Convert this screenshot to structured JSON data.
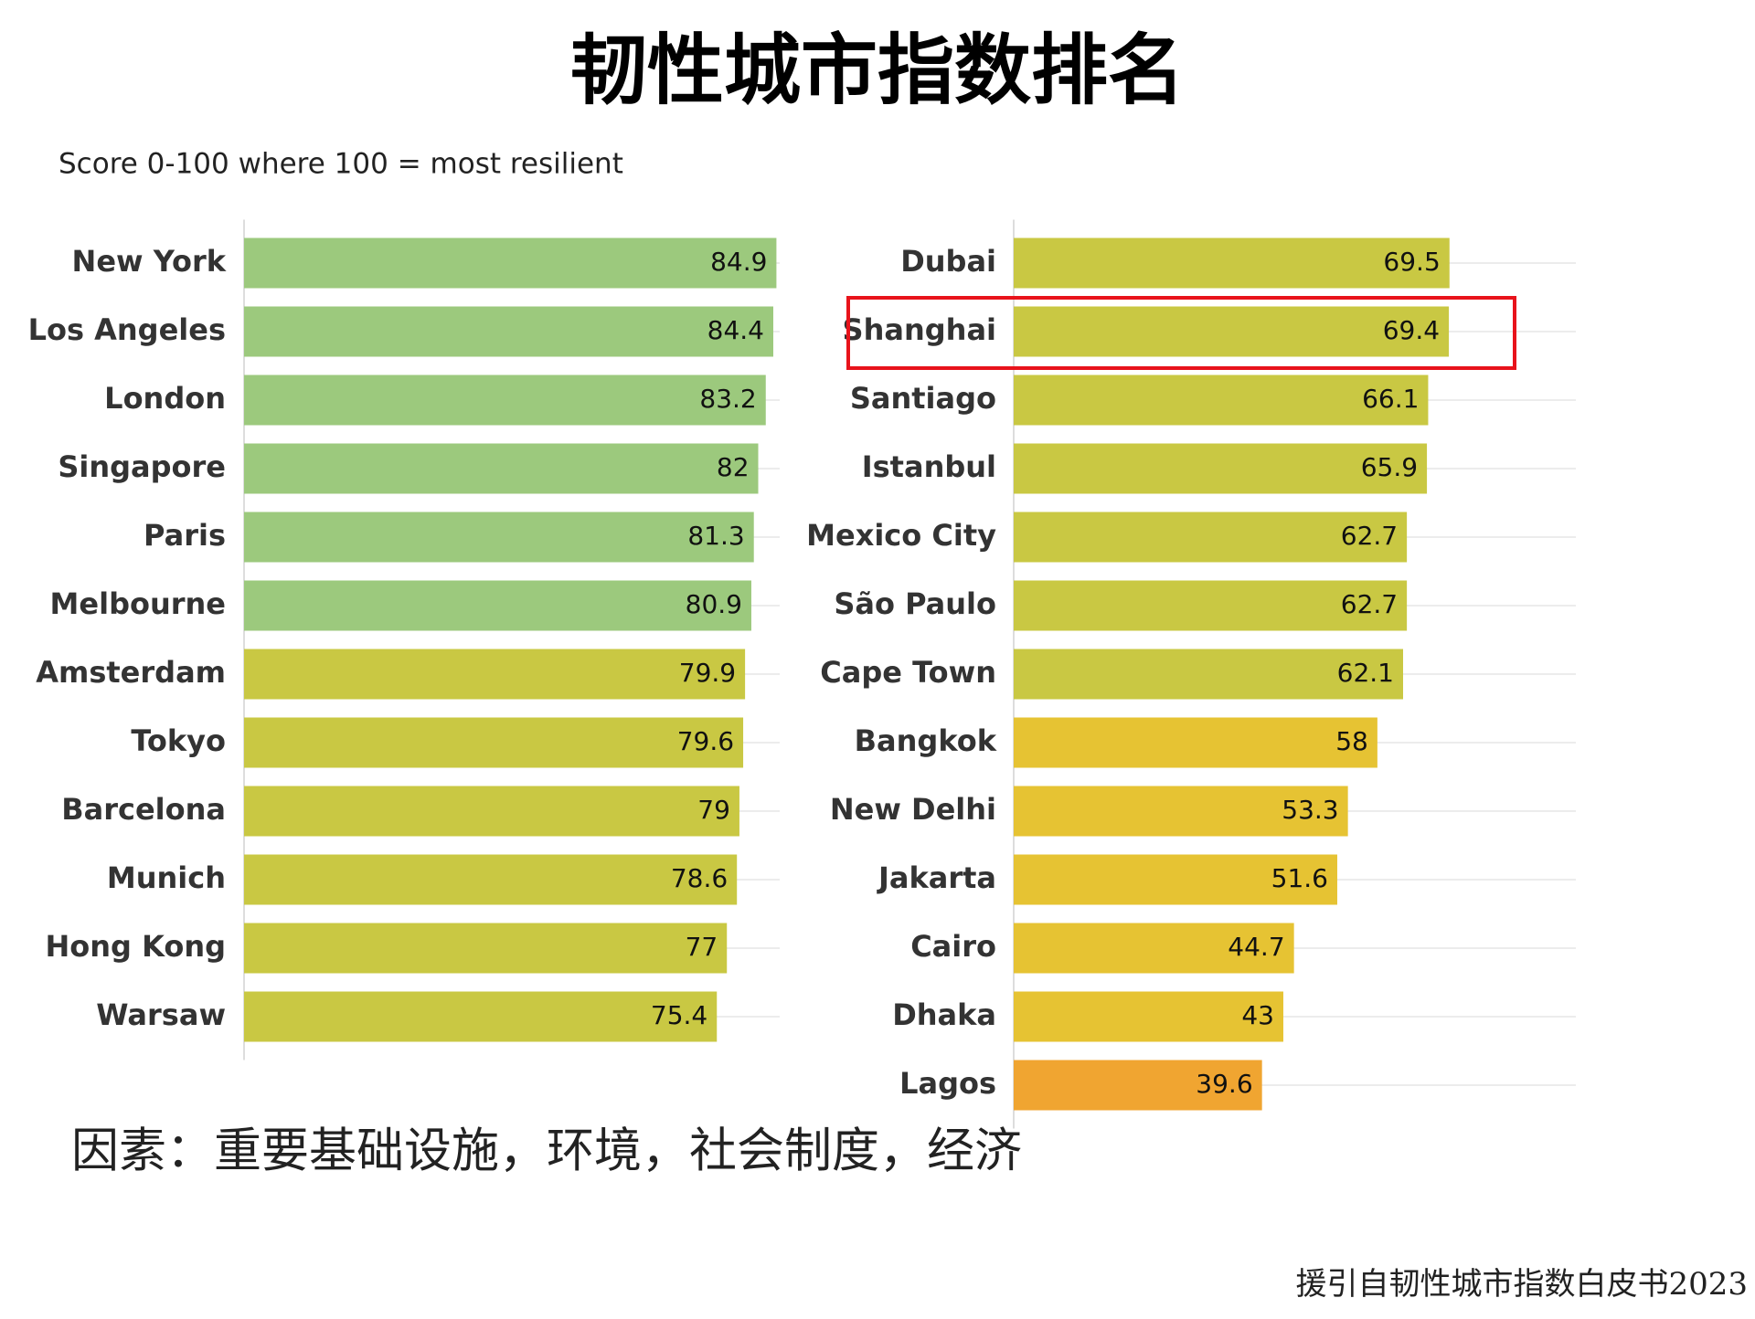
{
  "title": "韧性城市指数排名",
  "subtitle": "Score 0-100 where 100 = most resilient",
  "factors": "因素：重要基础设施，环境，社会制度，经济",
  "source": "援引自韧性城市指数白皮书2023",
  "chart_data": [
    {
      "type": "bar",
      "orientation": "horizontal",
      "xlim": [
        0,
        100
      ],
      "categories": [
        "New York",
        "Los Angeles",
        "London",
        "Singapore",
        "Paris",
        "Melbourne",
        "Amsterdam",
        "Tokyo",
        "Barcelona",
        "Munich",
        "Hong Kong",
        "Warsaw"
      ],
      "values": [
        84.9,
        84.4,
        83.2,
        82,
        81.3,
        80.9,
        79.9,
        79.6,
        79,
        78.6,
        77,
        75.4
      ],
      "colors": [
        "#9cc97d",
        "#9cc97d",
        "#9cc97d",
        "#9cc97d",
        "#9cc97d",
        "#9cc97d",
        "#c9c843",
        "#c9c843",
        "#c9c843",
        "#c9c843",
        "#c9c843",
        "#c9c843"
      ]
    },
    {
      "type": "bar",
      "orientation": "horizontal",
      "xlim": [
        0,
        100
      ],
      "categories": [
        "Dubai",
        "Shanghai",
        "Santiago",
        "Istanbul",
        "Mexico City",
        "São Paulo",
        "Cape Town",
        "Bangkok",
        "New Delhi",
        "Jakarta",
        "Cairo",
        "Dhaka",
        "Lagos"
      ],
      "values": [
        69.5,
        69.4,
        66.1,
        65.9,
        62.7,
        62.7,
        62.1,
        58,
        53.3,
        51.6,
        44.7,
        43,
        39.6
      ],
      "colors": [
        "#c9c843",
        "#c9c843",
        "#c9c843",
        "#c9c843",
        "#c9c843",
        "#c9c843",
        "#c9c843",
        "#e6c333",
        "#e6c333",
        "#e6c333",
        "#e6c333",
        "#e6c333",
        "#f0a531"
      ]
    }
  ]
}
